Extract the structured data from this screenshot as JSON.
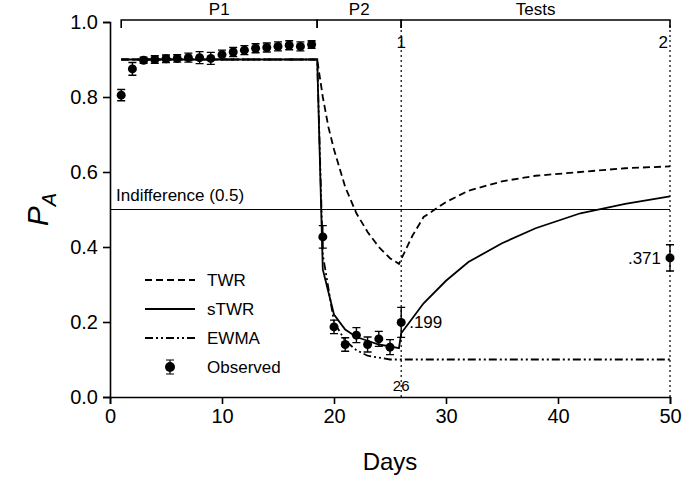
{
  "chart_data": {
    "type": "line",
    "xlabel": "Days",
    "ylabel": {
      "text": "P",
      "subscript": "A"
    },
    "xlim": [
      0,
      50
    ],
    "xticks": [
      0,
      10,
      20,
      30,
      40,
      50
    ],
    "ylim": [
      0,
      1
    ],
    "yticks": [
      {
        "value": 0,
        "label": "0.0"
      },
      {
        "value": 0.2,
        "label": "0.2"
      },
      {
        "value": 0.4,
        "label": "0.4"
      },
      {
        "value": 0.6,
        "label": "0.6"
      },
      {
        "value": 0.8,
        "label": "0.8"
      },
      {
        "value": 1,
        "label": "1.0"
      }
    ],
    "grid": false,
    "legend": "lower left",
    "series": [
      {
        "name": "TWR",
        "type": "line",
        "color": "#000000",
        "line_style": "dashed",
        "x": [
          1,
          18.5,
          19,
          19.5,
          20,
          21,
          22,
          23,
          24,
          25,
          25.8,
          27,
          28,
          30,
          32,
          35,
          38,
          42,
          46,
          50
        ],
        "values": [
          0.9,
          0.9,
          0.8,
          0.72,
          0.66,
          0.56,
          0.49,
          0.44,
          0.4,
          0.37,
          0.355,
          0.43,
          0.48,
          0.52,
          0.55,
          0.575,
          0.59,
          0.6,
          0.61,
          0.615
        ]
      },
      {
        "name": "sTWR",
        "type": "line",
        "color": "#000000",
        "line_style": "solid",
        "x": [
          1,
          18.5,
          19,
          19.5,
          20,
          21,
          22,
          23,
          24,
          25,
          25.8,
          26,
          28,
          30,
          32,
          35,
          38,
          42,
          46,
          50
        ],
        "values": [
          0.9,
          0.9,
          0.34,
          0.28,
          0.22,
          0.18,
          0.16,
          0.15,
          0.14,
          0.135,
          0.13,
          0.17,
          0.25,
          0.31,
          0.36,
          0.41,
          0.45,
          0.49,
          0.515,
          0.535
        ]
      },
      {
        "name": "EWMA",
        "type": "line",
        "color": "#000000",
        "line_style": "dashdot",
        "x": [
          1,
          18.5,
          19,
          20,
          21,
          22,
          23,
          24,
          25,
          26,
          50
        ],
        "values": [
          0.9,
          0.9,
          0.38,
          0.2,
          0.15,
          0.125,
          0.11,
          0.105,
          0.1,
          0.1,
          0.1
        ]
      },
      {
        "name": "Observed",
        "type": "scatter",
        "color": "#000000",
        "marker": "circle",
        "x": [
          1,
          2,
          3,
          4,
          5,
          6,
          7,
          8,
          9,
          10,
          11,
          12,
          13,
          14,
          15,
          16,
          17,
          18,
          19,
          20,
          21,
          22,
          23,
          24,
          25,
          26,
          50
        ],
        "values": [
          0.805,
          0.875,
          0.898,
          0.9,
          0.902,
          0.903,
          0.905,
          0.905,
          0.903,
          0.913,
          0.92,
          0.925,
          0.93,
          0.932,
          0.935,
          0.938,
          0.935,
          0.94,
          0.427,
          0.187,
          0.14,
          0.165,
          0.14,
          0.155,
          0.133,
          0.199,
          0.371
        ],
        "errors": [
          0.015,
          0.017,
          0.008,
          0.01,
          0.01,
          0.01,
          0.012,
          0.016,
          0.016,
          0.012,
          0.012,
          0.012,
          0.012,
          0.012,
          0.012,
          0.012,
          0.012,
          0.01,
          0.03,
          0.018,
          0.018,
          0.02,
          0.02,
          0.02,
          0.02,
          0.04,
          0.035
        ],
        "value_labels": [
          null,
          null,
          null,
          null,
          null,
          null,
          null,
          null,
          null,
          null,
          null,
          null,
          null,
          null,
          null,
          null,
          null,
          null,
          null,
          null,
          null,
          null,
          null,
          null,
          null,
          ".199",
          ".371"
        ]
      }
    ],
    "reference_line": {
      "y": 0.5,
      "label": "Indifference (0.5)"
    },
    "phases": [
      {
        "label": "P1",
        "start": 1,
        "end": 18.5
      },
      {
        "label": "P2",
        "start": 18.5,
        "end": 26
      },
      {
        "label": "Tests",
        "start": 26,
        "end": 50
      }
    ],
    "tests": [
      {
        "label": "1",
        "x": 26
      },
      {
        "label": "2",
        "x": 50
      }
    ],
    "x_annotations": [
      26
    ]
  }
}
